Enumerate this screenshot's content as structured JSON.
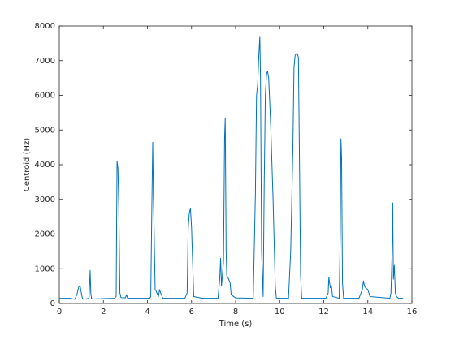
{
  "chart_data": {
    "type": "line",
    "xlabel": "Time (s)",
    "ylabel": "Centroid (Hz)",
    "color": "#0072bd",
    "xlim": [
      0,
      16
    ],
    "ylim": [
      0,
      8000
    ],
    "xticks": [
      0,
      2,
      4,
      6,
      8,
      10,
      12,
      14,
      16
    ],
    "yticks": [
      0,
      1000,
      2000,
      3000,
      4000,
      5000,
      6000,
      7000,
      8000
    ],
    "x": [
      0,
      0.5,
      0.7,
      0.8,
      0.85,
      0.9,
      0.95,
      1.0,
      1.05,
      1.1,
      1.35,
      1.4,
      1.43,
      1.46,
      1.5,
      2.5,
      2.58,
      2.62,
      2.66,
      2.7,
      2.75,
      2.8,
      3.0,
      3.05,
      3.1,
      4.1,
      4.15,
      4.2,
      4.24,
      4.27,
      4.3,
      4.35,
      4.4,
      4.5,
      4.55,
      4.6,
      4.7,
      5.7,
      5.8,
      5.85,
      5.9,
      5.95,
      6.0,
      6.1,
      6.5,
      7.2,
      7.28,
      7.32,
      7.36,
      7.45,
      7.5,
      7.53,
      7.57,
      7.6,
      7.65,
      7.75,
      7.8,
      8.0,
      8.8,
      8.9,
      8.95,
      9.0,
      9.05,
      9.1,
      9.13,
      9.18,
      9.25,
      9.3,
      9.35,
      9.4,
      9.45,
      9.5,
      9.55,
      9.6,
      9.7,
      9.8,
      9.85,
      10.4,
      10.5,
      10.6,
      10.65,
      10.7,
      10.75,
      10.8,
      10.85,
      10.9,
      10.95,
      11.0,
      12.1,
      12.2,
      12.23,
      12.3,
      12.35,
      12.4,
      12.7,
      12.75,
      12.78,
      12.81,
      12.85,
      12.9,
      13.6,
      13.75,
      13.8,
      13.85,
      13.9,
      14.0,
      14.1,
      15.0,
      15.05,
      15.1,
      15.13,
      15.16,
      15.2,
      15.25,
      15.3,
      15.4,
      15.6
    ],
    "values": [
      150,
      150,
      120,
      250,
      400,
      500,
      480,
      300,
      150,
      120,
      150,
      950,
      300,
      150,
      130,
      150,
      200,
      4100,
      3900,
      2800,
      300,
      170,
      160,
      250,
      150,
      150,
      200,
      2800,
      4650,
      3100,
      2200,
      400,
      350,
      200,
      400,
      300,
      150,
      150,
      300,
      2200,
      2600,
      2750,
      2200,
      200,
      150,
      150,
      700,
      1300,
      500,
      1200,
      4800,
      5350,
      1500,
      800,
      750,
      600,
      250,
      160,
      150,
      3200,
      6000,
      6300,
      7100,
      7700,
      6500,
      1500,
      200,
      3500,
      6000,
      6600,
      6700,
      6500,
      5800,
      5000,
      3000,
      500,
      150,
      150,
      1500,
      4500,
      6800,
      7150,
      7200,
      7200,
      7100,
      4000,
      800,
      150,
      150,
      300,
      750,
      450,
      500,
      200,
      150,
      2000,
      4750,
      4200,
      600,
      150,
      150,
      400,
      650,
      500,
      450,
      400,
      200,
      150,
      300,
      1400,
      2900,
      700,
      1100,
      300,
      200,
      150,
      150
    ]
  }
}
